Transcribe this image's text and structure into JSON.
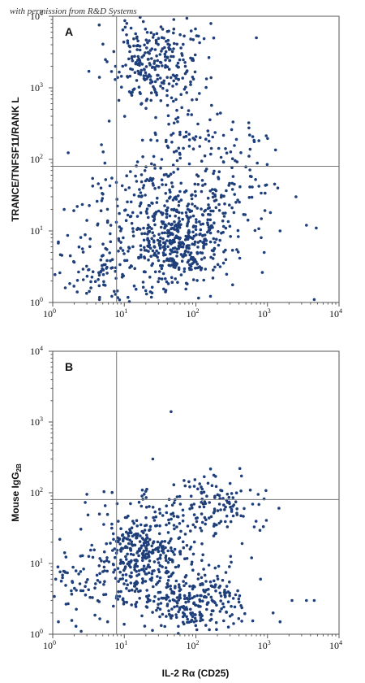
{
  "watermark": "with permission from R&D Systems",
  "chart_data": [
    {
      "type": "scatter",
      "panel": "A",
      "xlabel": "",
      "ylabel": "TRANCE/TNFSF11/RANK L",
      "xscale": "log",
      "yscale": "log",
      "xlim": [
        1,
        10000
      ],
      "ylim": [
        1,
        10000
      ],
      "x_ticks": [
        "10",
        "10",
        "10",
        "10",
        "10"
      ],
      "x_tick_exponents": [
        "0",
        "1",
        "2",
        "3",
        "4"
      ],
      "y_ticks": [
        "10",
        "10",
        "10",
        "10",
        "10"
      ],
      "y_tick_exponents": [
        "0",
        "1",
        "2",
        "3",
        "4"
      ],
      "gate": {
        "x": 7.8,
        "y": 80
      },
      "clusters": [
        {
          "cx": 25,
          "cy": 2500,
          "sx": 0.28,
          "sy": 0.28,
          "n": 220
        },
        {
          "cx": 45,
          "cy": 900,
          "sx": 0.35,
          "sy": 0.45,
          "n": 70
        },
        {
          "cx": 150,
          "cy": 150,
          "sx": 0.4,
          "sy": 0.25,
          "n": 70
        },
        {
          "cx": 60,
          "cy": 7,
          "sx": 0.32,
          "sy": 0.3,
          "n": 360
        },
        {
          "cx": 20,
          "cy": 25,
          "sx": 0.45,
          "sy": 0.4,
          "n": 200
        },
        {
          "cx": 5,
          "cy": 3,
          "sx": 0.35,
          "sy": 0.3,
          "n": 110
        },
        {
          "cx": 200,
          "cy": 25,
          "sx": 0.4,
          "sy": 0.35,
          "n": 110
        }
      ],
      "outliers": [
        [
          1.2,
          7
        ],
        [
          1.5,
          1.6
        ],
        [
          2.2,
          1.4
        ],
        [
          4.5,
          1.1
        ],
        [
          2.2,
          22
        ],
        [
          3.0,
          14
        ],
        [
          3.2,
          1700
        ],
        [
          4.5,
          1400
        ],
        [
          4.8,
          160
        ],
        [
          9.5,
          2000
        ],
        [
          1500,
          10
        ],
        [
          2500,
          30
        ],
        [
          3500,
          12
        ],
        [
          4500,
          1.1
        ],
        [
          4800,
          11
        ],
        [
          900,
          5
        ],
        [
          1100,
          18
        ],
        [
          700,
          5000
        ]
      ]
    },
    {
      "type": "scatter",
      "panel": "B",
      "xlabel": "IL-2 Rα (CD25)",
      "ylabel": "Mouse IgG",
      "ylabel_sub": "2B",
      "xscale": "log",
      "yscale": "log",
      "xlim": [
        1,
        10000
      ],
      "ylim": [
        1,
        10000
      ],
      "x_ticks": [
        "10",
        "10",
        "10",
        "10",
        "10"
      ],
      "x_tick_exponents": [
        "0",
        "1",
        "2",
        "3",
        "4"
      ],
      "y_ticks": [
        "10",
        "10",
        "10",
        "10",
        "10"
      ],
      "y_tick_exponents": [
        "0",
        "1",
        "2",
        "3",
        "4"
      ],
      "gate": {
        "x": 7.8,
        "y": 80
      },
      "clusters": [
        {
          "cx": 20,
          "cy": 15,
          "sx": 0.3,
          "sy": 0.3,
          "n": 330
        },
        {
          "cx": 90,
          "cy": 3,
          "sx": 0.32,
          "sy": 0.25,
          "n": 260
        },
        {
          "cx": 150,
          "cy": 60,
          "sx": 0.4,
          "sy": 0.22,
          "n": 150
        },
        {
          "cx": 5,
          "cy": 6,
          "sx": 0.45,
          "sy": 0.4,
          "n": 120
        }
      ],
      "outliers": [
        [
          45,
          1400
        ],
        [
          1.1,
          6
        ],
        [
          1.2,
          1.5
        ],
        [
          2.5,
          1.1
        ],
        [
          1200,
          2
        ],
        [
          1500,
          1.5
        ],
        [
          2200,
          3
        ],
        [
          3500,
          3
        ],
        [
          4500,
          3
        ],
        [
          800,
          6
        ],
        [
          600,
          12
        ],
        [
          25,
          300
        ],
        [
          3.0,
          95
        ],
        [
          4.5,
          50
        ]
      ]
    }
  ]
}
